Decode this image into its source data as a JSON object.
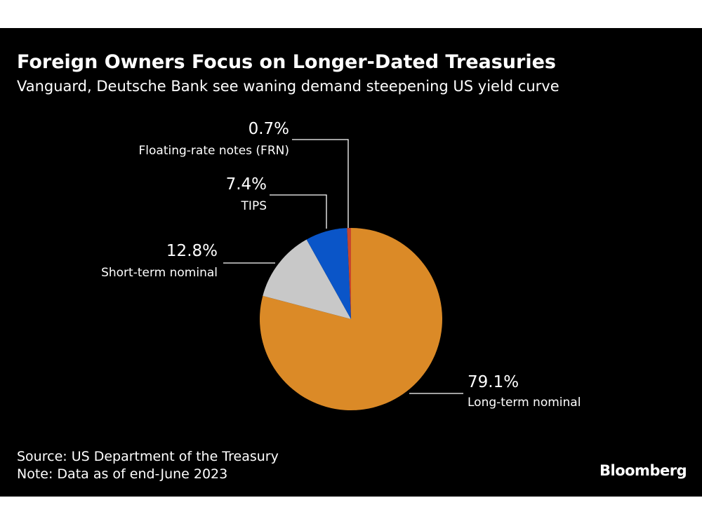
{
  "header": {
    "title": "Foreign Owners Focus on Longer-Dated Treasuries",
    "subtitle": "Vanguard, Deutsche Bank see waning demand steepening US yield curve"
  },
  "chart_data": {
    "type": "pie",
    "slices": [
      {
        "label": "Long-term nominal",
        "value": 79.1,
        "value_label": "79.1%",
        "color": "#db8a27"
      },
      {
        "label": "Short-term nominal",
        "value": 12.8,
        "value_label": "12.8%",
        "color": "#c8c8c8"
      },
      {
        "label": "TIPS",
        "value": 7.4,
        "value_label": "7.4%",
        "color": "#0a55c8"
      },
      {
        "label": "Floating-rate notes (FRN)",
        "value": 0.7,
        "value_label": "0.7%",
        "color": "#c8462d"
      }
    ],
    "direction": "clockwise from 12 o'clock",
    "legend": "none"
  },
  "footer": {
    "source": "Source: US Department of the Treasury",
    "note": "Note: Data as of end-June 2023",
    "brand": "Bloomberg"
  },
  "colors": {
    "background": "#000000",
    "text": "#ffffff",
    "leader_line": "#ffffff"
  }
}
